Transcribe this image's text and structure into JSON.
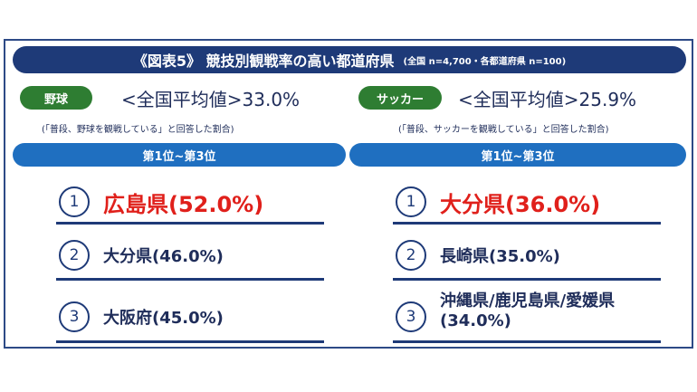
{
  "title": {
    "main": "《図表5》 競技別観戦率の高い都道府県",
    "note": "(全国 n=4,700・各都道府県 n=100)"
  },
  "columns": [
    {
      "sport": "野球",
      "average": "<全国平均値>33.0%",
      "note": "(「普段、野球を観戦している」と回答した割合)",
      "rank_header": "第1位~第3位",
      "ranks": [
        {
          "num": "1",
          "place": "広島県(52.0%)"
        },
        {
          "num": "2",
          "place": "大分県(46.0%)"
        },
        {
          "num": "3",
          "place": "大阪府(45.0%)"
        }
      ]
    },
    {
      "sport": "サッカー",
      "average": "<全国平均値>25.9%",
      "note": "(「普段、サッカーを観戦している」と回答した割合)",
      "rank_header": "第1位~第3位",
      "ranks": [
        {
          "num": "1",
          "place": "大分県(36.0%)"
        },
        {
          "num": "2",
          "place": "長崎県(35.0%)"
        },
        {
          "num": "3",
          "place": "沖縄県/鹿児島県/愛媛県 (34.0%)"
        }
      ]
    }
  ],
  "colors": {
    "title_bg": "#1e3a78",
    "sport_pill": "#2e7d32",
    "rank_bar": "#1f6fc0",
    "top_rank": "#e0201b"
  }
}
